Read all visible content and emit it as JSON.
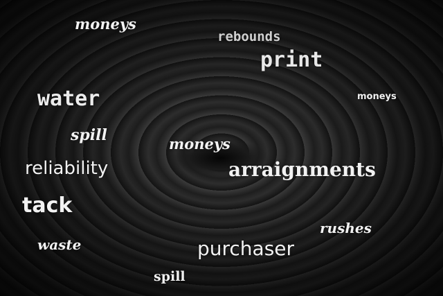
{
  "words": [
    "moneys",
    "rebounds",
    "print",
    "water",
    "moneys",
    "spill",
    "moneys",
    "reliability",
    "arraignments",
    "tack",
    "rushes",
    "waste",
    "purchaser",
    "spill"
  ]
}
